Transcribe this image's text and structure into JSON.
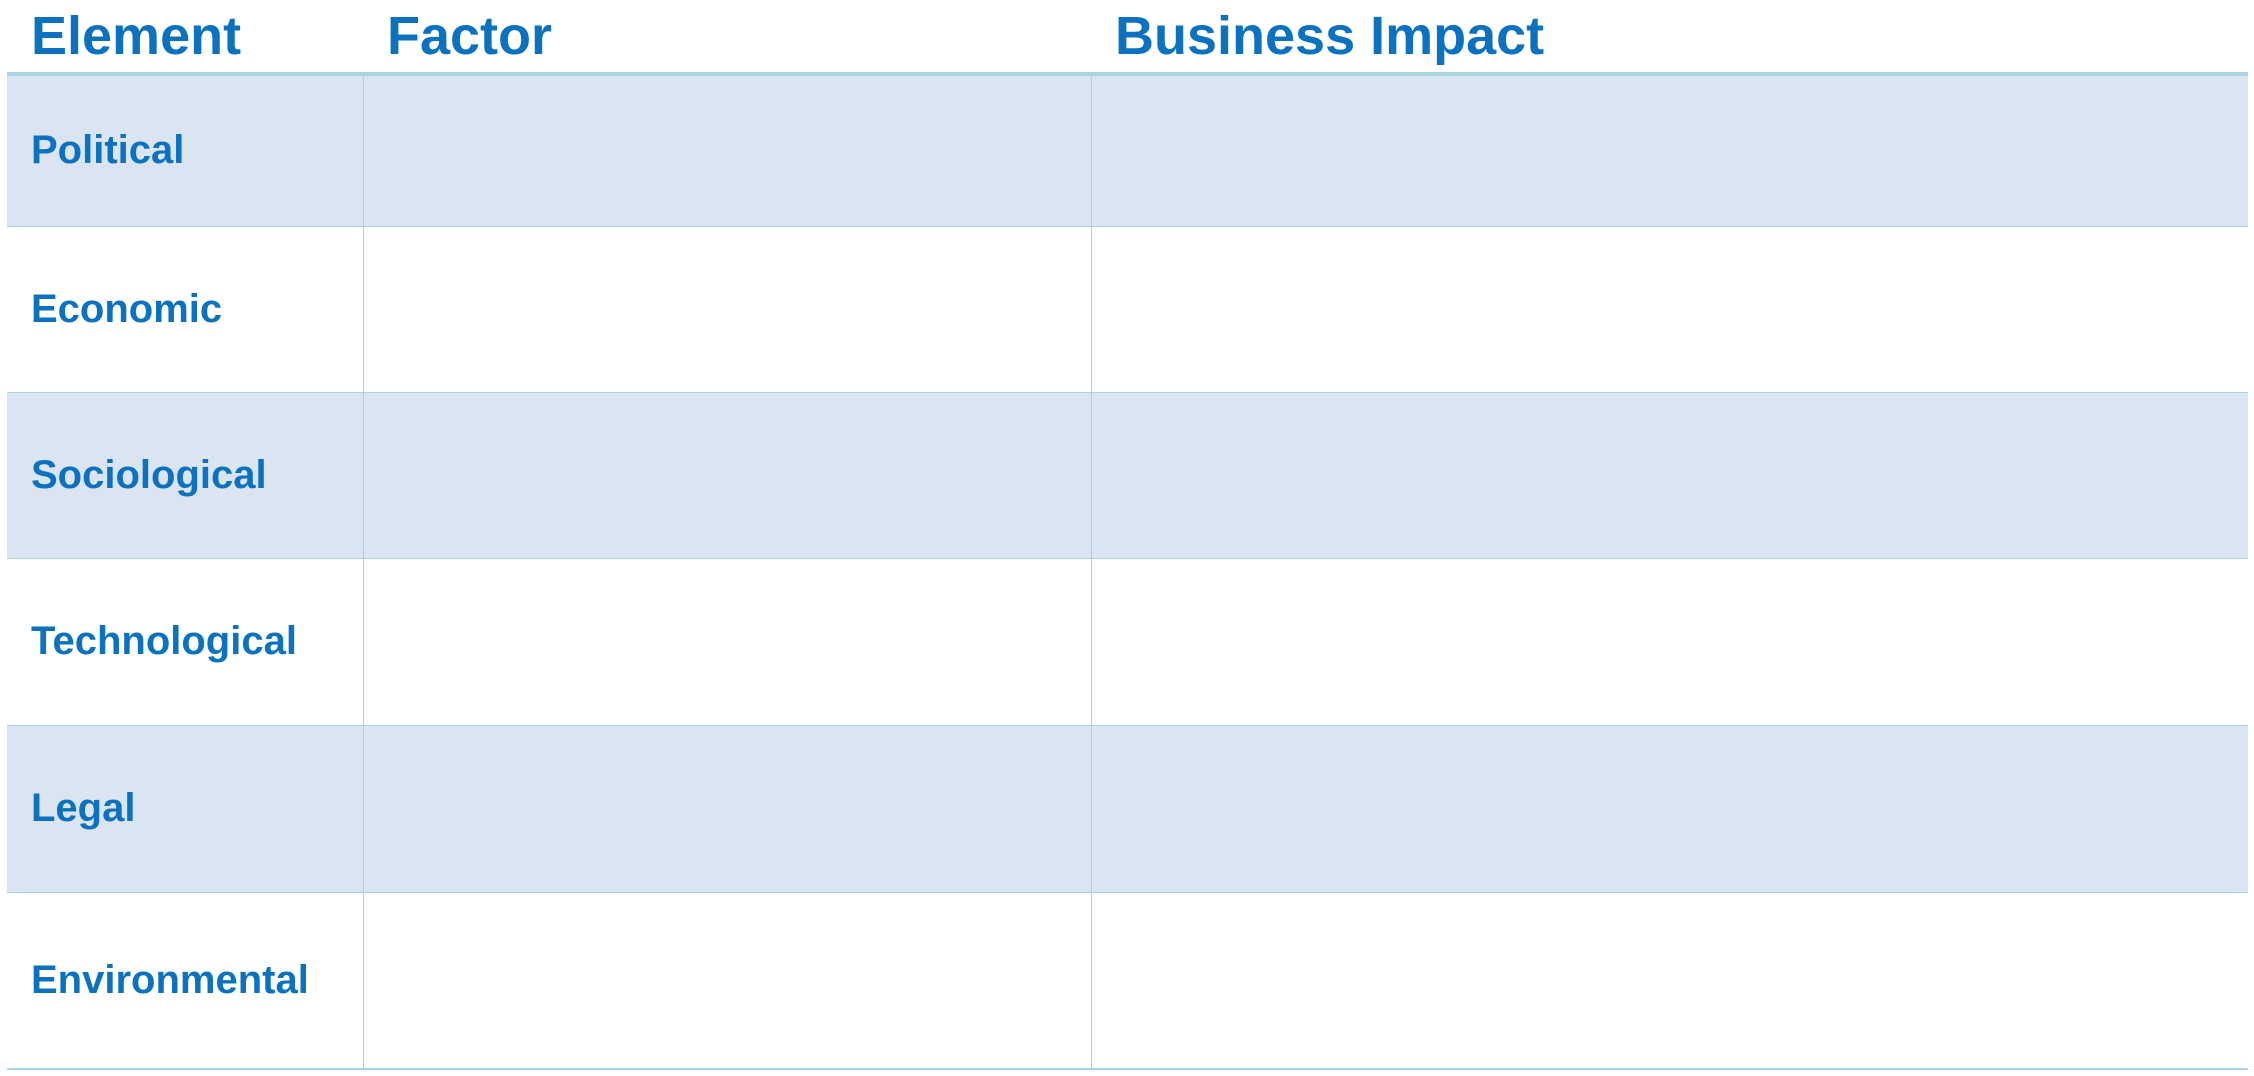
{
  "table": {
    "headers": [
      "Element",
      "Factor",
      "Business Impact"
    ],
    "rows": [
      {
        "element": "Political",
        "factor": "",
        "business_impact": ""
      },
      {
        "element": "Economic",
        "factor": "",
        "business_impact": ""
      },
      {
        "element": "Sociological",
        "factor": "",
        "business_impact": ""
      },
      {
        "element": "Technological",
        "factor": "",
        "business_impact": ""
      },
      {
        "element": "Legal",
        "factor": "",
        "business_impact": ""
      },
      {
        "element": "Environmental",
        "factor": "",
        "business_impact": ""
      }
    ]
  },
  "colors": {
    "heading_text": "#0c72c0",
    "shaded_row": "#dbe5f1",
    "border": "#a9d2e2"
  }
}
